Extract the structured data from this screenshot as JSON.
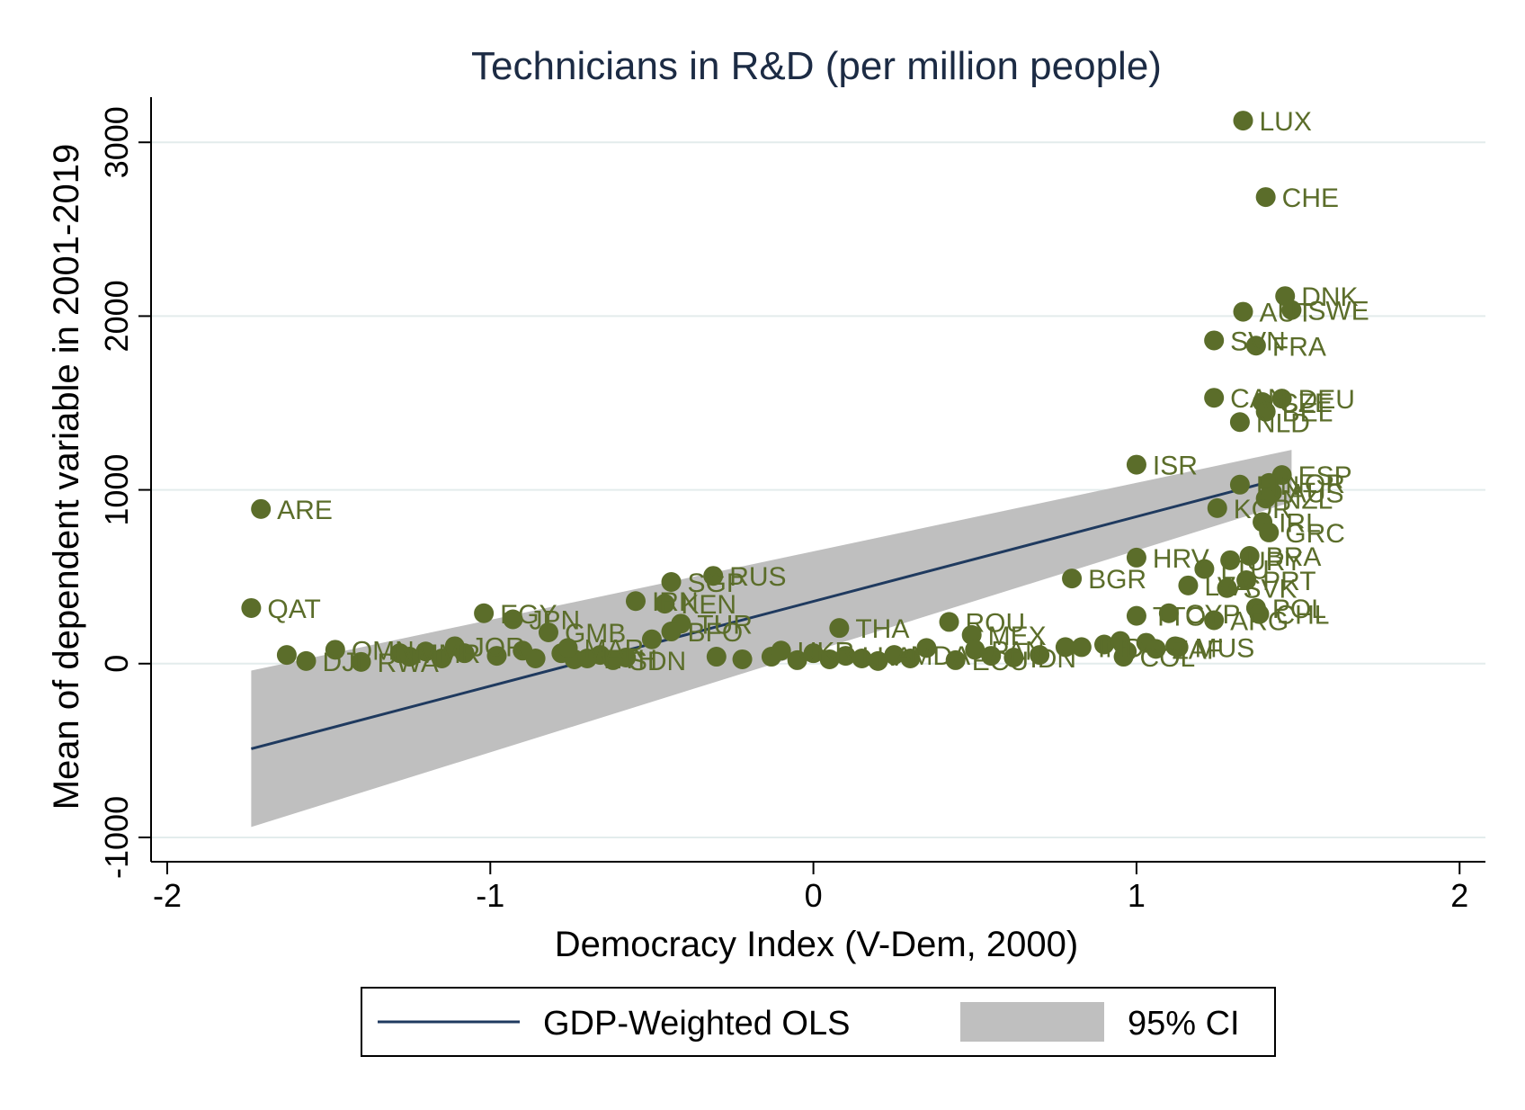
{
  "chart_data": {
    "type": "scatter",
    "title": "Technicians in R&D (per million people)",
    "xlabel": "Democracy Index (V-Dem, 2000)",
    "ylabel": "Mean of dependent variable in 2001-2019",
    "xlim": [
      -2.05,
      2.08
    ],
    "ylim": [
      -1140,
      3260
    ],
    "xticks": [
      -2,
      -1,
      0,
      1,
      2
    ],
    "xtick_labels": [
      "-2",
      "-1",
      "0",
      "1",
      "2"
    ],
    "yticks": [
      -1000,
      0,
      1000,
      2000,
      3000
    ],
    "ytick_labels": [
      "-1000",
      "0",
      "1000",
      "2000",
      "3000"
    ],
    "grid": "horizontal",
    "colors": {
      "points": "#5b6d2a",
      "fit_line": "#1f3a5f",
      "ci_band": "#bfbfbf",
      "grid": "#e3ecec",
      "title": "#1c2b44"
    },
    "points": [
      {
        "label": "LUX",
        "x": 1.33,
        "y": 3125
      },
      {
        "label": "CHE",
        "x": 1.4,
        "y": 2685
      },
      {
        "label": "DNK",
        "x": 1.46,
        "y": 2115
      },
      {
        "label": "AUT",
        "x": 1.33,
        "y": 2025
      },
      {
        "label": "SWE",
        "x": 1.48,
        "y": 2035
      },
      {
        "label": "SVN",
        "x": 1.24,
        "y": 1860
      },
      {
        "label": "FRA",
        "x": 1.37,
        "y": 1830
      },
      {
        "label": "CAN",
        "x": 1.24,
        "y": 1530
      },
      {
        "label": "CZE",
        "x": 1.39,
        "y": 1505
      },
      {
        "label": "DEU",
        "x": 1.45,
        "y": 1525
      },
      {
        "label": "BEL",
        "x": 1.4,
        "y": 1450
      },
      {
        "label": "NLD",
        "x": 1.32,
        "y": 1390
      },
      {
        "label": "ISR",
        "x": 1.0,
        "y": 1145
      },
      {
        "label": "ESP",
        "x": 1.45,
        "y": 1085
      },
      {
        "label": "FIN",
        "x": 1.32,
        "y": 1030
      },
      {
        "label": "NOR",
        "x": 1.41,
        "y": 1040
      },
      {
        "label": "AUS",
        "x": 1.42,
        "y": 985
      },
      {
        "label": "NZL",
        "x": 1.4,
        "y": 950
      },
      {
        "label": "KOR",
        "x": 1.25,
        "y": 895
      },
      {
        "label": "IRL",
        "x": 1.39,
        "y": 815
      },
      {
        "label": "GRC",
        "x": 1.41,
        "y": 755
      },
      {
        "label": "ARE",
        "x": -1.71,
        "y": 890
      },
      {
        "label": "QAT",
        "x": -1.74,
        "y": 320
      },
      {
        "label": "HRV",
        "x": 1.0,
        "y": 610
      },
      {
        "label": "BRA",
        "x": 1.35,
        "y": 620
      },
      {
        "label": "URY",
        "x": 1.29,
        "y": 595
      },
      {
        "label": "BGR",
        "x": 0.8,
        "y": 490
      },
      {
        "label": "LTU",
        "x": 1.21,
        "y": 545
      },
      {
        "label": "PRT",
        "x": 1.34,
        "y": 480
      },
      {
        "label": "LVA",
        "x": 1.16,
        "y": 450
      },
      {
        "label": "SVK",
        "x": 1.28,
        "y": 435
      },
      {
        "label": "POL",
        "x": 1.37,
        "y": 320
      },
      {
        "label": "CYP",
        "x": 1.1,
        "y": 290
      },
      {
        "label": "TTO",
        "x": 1.0,
        "y": 275
      },
      {
        "label": "ARG",
        "x": 1.24,
        "y": 250
      },
      {
        "label": "CHL",
        "x": 1.38,
        "y": 285
      },
      {
        "label": "MUS",
        "x": 1.13,
        "y": 95
      },
      {
        "label": "SGP",
        "x": -0.44,
        "y": 470
      },
      {
        "label": "RUS",
        "x": -0.31,
        "y": 505
      },
      {
        "label": "IRN",
        "x": -0.55,
        "y": 360
      },
      {
        "label": "KEN",
        "x": -0.46,
        "y": 345
      },
      {
        "label": "EGY",
        "x": -1.02,
        "y": 290
      },
      {
        "label": "JPN",
        "x": -0.93,
        "y": 255
      },
      {
        "label": "TUR",
        "x": -0.41,
        "y": 230
      },
      {
        "label": "GMB",
        "x": -0.82,
        "y": 180
      },
      {
        "label": "BFO",
        "x": -0.44,
        "y": 185
      },
      {
        "label": "JOR",
        "x": -1.11,
        "y": 100
      },
      {
        "label": "THA",
        "x": 0.08,
        "y": 205
      },
      {
        "label": "ROU",
        "x": 0.42,
        "y": 240
      },
      {
        "label": "MEX",
        "x": 0.49,
        "y": 165
      },
      {
        "label": "OMN",
        "x": -1.48,
        "y": 80
      },
      {
        "label": "DJI",
        "x": -1.57,
        "y": 15
      },
      {
        "label": "RWA",
        "x": -1.4,
        "y": 10
      },
      {
        "label": "IND",
        "x": 0.83,
        "y": 95
      },
      {
        "label": "IDN",
        "x": 0.62,
        "y": 35
      },
      {
        "label": "COL",
        "x": 0.96,
        "y": 40
      },
      {
        "label": "ZAF",
        "x": 1.06,
        "y": 85
      },
      {
        "label": "PAN",
        "x": 0.5,
        "y": 80
      },
      {
        "label": "MDA",
        "x": 0.25,
        "y": 50
      },
      {
        "label": "LKA",
        "x": 0.1,
        "y": 45
      },
      {
        "label": "UKR",
        "x": -0.1,
        "y": 75
      },
      {
        "label": "MMR",
        "x": -1.28,
        "y": 60
      },
      {
        "label": "ETH",
        "x": -0.7,
        "y": 30
      },
      {
        "label": "SDN",
        "x": -0.62,
        "y": 20
      },
      {
        "label": "ECU",
        "x": 0.44,
        "y": 20
      },
      {
        "label": "MAR",
        "x": -0.76,
        "y": 90
      }
    ],
    "extra_points": [
      {
        "x": -1.63,
        "y": 50
      },
      {
        "x": -1.25,
        "y": 40
      },
      {
        "x": -1.2,
        "y": 70
      },
      {
        "x": -1.15,
        "y": 30
      },
      {
        "x": -1.08,
        "y": 60
      },
      {
        "x": -0.98,
        "y": 45
      },
      {
        "x": -0.9,
        "y": 75
      },
      {
        "x": -0.86,
        "y": 30
      },
      {
        "x": -0.78,
        "y": 60
      },
      {
        "x": -0.74,
        "y": 25
      },
      {
        "x": -0.66,
        "y": 50
      },
      {
        "x": -0.58,
        "y": 35
      },
      {
        "x": -0.5,
        "y": 140
      },
      {
        "x": -0.3,
        "y": 40
      },
      {
        "x": -0.22,
        "y": 25
      },
      {
        "x": -0.13,
        "y": 40
      },
      {
        "x": -0.05,
        "y": 20
      },
      {
        "x": 0.0,
        "y": 60
      },
      {
        "x": 0.05,
        "y": 25
      },
      {
        "x": 0.15,
        "y": 30
      },
      {
        "x": 0.2,
        "y": 15
      },
      {
        "x": 0.3,
        "y": 30
      },
      {
        "x": 0.35,
        "y": 90
      },
      {
        "x": 0.55,
        "y": 45
      },
      {
        "x": 0.7,
        "y": 50
      },
      {
        "x": 0.78,
        "y": 95
      },
      {
        "x": 0.9,
        "y": 110
      },
      {
        "x": 0.95,
        "y": 130
      },
      {
        "x": 1.03,
        "y": 120
      },
      {
        "x": 1.12,
        "y": 100
      },
      {
        "x": 0.97,
        "y": 70
      }
    ],
    "fit_line": {
      "x": [
        -1.74,
        1.48
      ],
      "y": [
        -490,
        1080
      ]
    },
    "ci_band": {
      "x": [
        -1.74,
        1.48
      ],
      "lower": [
        -940,
        930
      ],
      "upper": [
        -40,
        1230
      ]
    },
    "legend": {
      "placement": "bottom",
      "entries": [
        {
          "label": "GDP-Weighted OLS",
          "kind": "line"
        },
        {
          "label": "95% CI",
          "kind": "area"
        }
      ]
    }
  }
}
